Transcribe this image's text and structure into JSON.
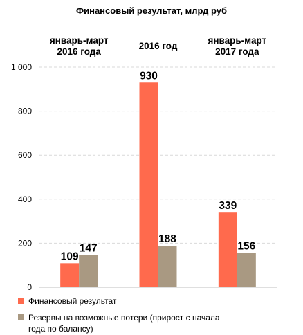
{
  "chart_data": {
    "type": "bar",
    "title": "Финансовый результат,  млрд руб",
    "categories": [
      "январь-март 2016 года",
      "2016 год",
      "январь-март 2017 года"
    ],
    "category_labels": [
      [
        "январь-март",
        "2016 года"
      ],
      [
        "2016 год"
      ],
      [
        "январь-март",
        "2017 года"
      ]
    ],
    "series": [
      {
        "name": "Финансовый результат",
        "values": [
          109,
          930,
          339
        ],
        "color": "#ff6a4d"
      },
      {
        "name_lines": [
          "Резервы на возможные потери (прирост с начала",
          "года по балансу)"
        ],
        "values": [
          147,
          188,
          156
        ],
        "color": "#a99982"
      }
    ],
    "y_ticks": [
      "0",
      "200",
      "400",
      "600",
      "800",
      "1 000"
    ],
    "ylim": [
      0,
      1000
    ],
    "grid": true,
    "legend_position": "bottom"
  }
}
